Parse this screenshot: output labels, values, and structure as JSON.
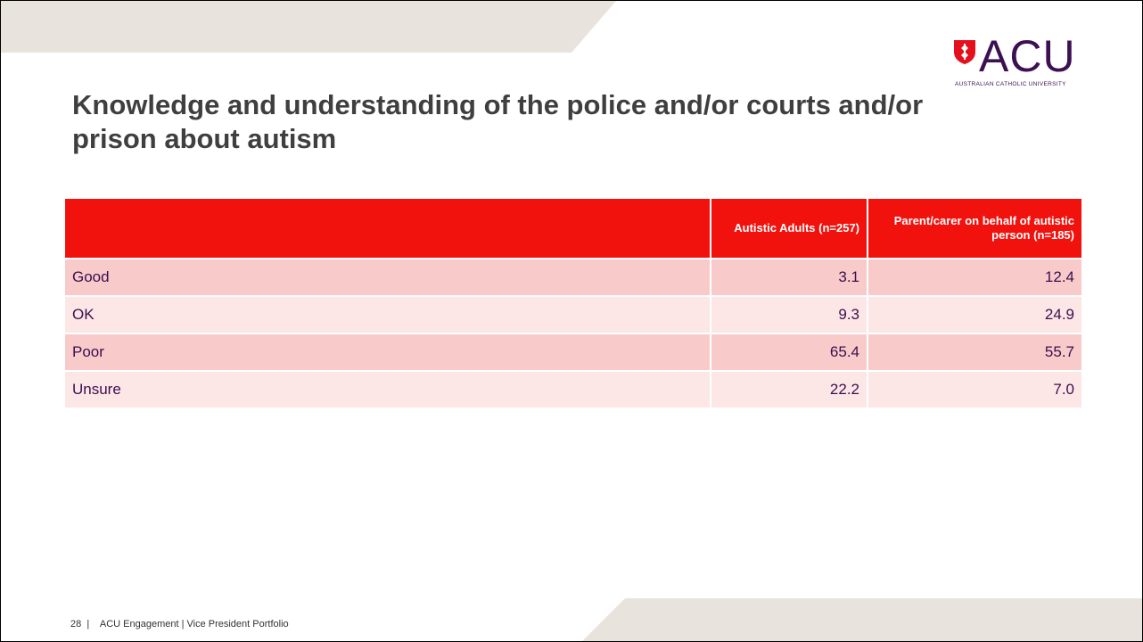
{
  "slide": {
    "title": "Knowledge and understanding of the police and/or courts and/or prison about autism",
    "logo": {
      "text": "ACU",
      "subtitle": "AUSTRALIAN CATHOLIC UNIVERSITY"
    },
    "table": {
      "headers": [
        "",
        "Autistic Adults (n=257)",
        "Parent/carer on behalf of autistic person (n=185)"
      ],
      "rows": [
        {
          "label": "Good",
          "adults": "3.1",
          "parents": "12.4"
        },
        {
          "label": "OK",
          "adults": "9.3",
          "parents": "24.9"
        },
        {
          "label": "Poor",
          "adults": "65.4",
          "parents": "55.7"
        },
        {
          "label": "Unsure",
          "adults": "22.2",
          "parents": "7.0"
        }
      ]
    },
    "footer": {
      "page": "28",
      "text": "ACU Engagement | Vice President Portfolio"
    },
    "colors": {
      "header_red": "#f1120e",
      "row_odd": "#f9caca",
      "row_even": "#fde6e6",
      "band": "#e8e3dc",
      "brand_purple": "#3c1053"
    }
  }
}
